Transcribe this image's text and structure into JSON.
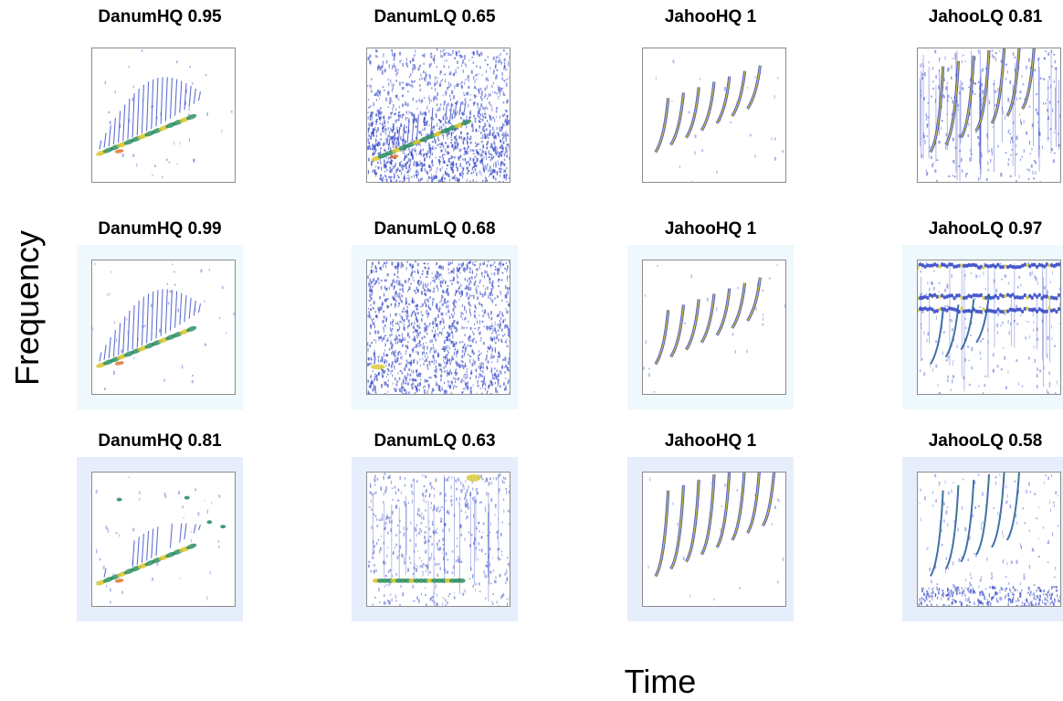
{
  "axes": {
    "y_label": "Frequency",
    "x_label": "Time"
  },
  "panels": [
    {
      "id": "r1c1",
      "title": "DanumHQ 0.95",
      "site": "DanumHQ",
      "score": 0.95,
      "noise": "low",
      "pattern": "danum"
    },
    {
      "id": "r1c2",
      "title": "DanumLQ 0.65",
      "site": "DanumLQ",
      "score": 0.65,
      "noise": "high",
      "pattern": "danum-noisy"
    },
    {
      "id": "r1c3",
      "title": "JahooHQ 1",
      "site": "JahooHQ",
      "score": 1,
      "noise": "low",
      "pattern": "jahoo"
    },
    {
      "id": "r1c4",
      "title": "JahooLQ 0.81",
      "site": "JahooLQ",
      "score": 0.81,
      "noise": "medium",
      "pattern": "jahoo-noisy"
    },
    {
      "id": "r2c1",
      "title": "DanumHQ 0.99",
      "site": "DanumHQ",
      "score": 0.99,
      "noise": "low",
      "pattern": "danum"
    },
    {
      "id": "r2c2",
      "title": "DanumLQ 0.68",
      "site": "DanumLQ",
      "score": 0.68,
      "noise": "very-high",
      "pattern": "noise"
    },
    {
      "id": "r2c3",
      "title": "JahooHQ 1",
      "site": "JahooHQ",
      "score": 1,
      "noise": "low",
      "pattern": "jahoo"
    },
    {
      "id": "r2c4",
      "title": "JahooLQ 0.97",
      "site": "JahooLQ",
      "score": 0.97,
      "noise": "bands",
      "pattern": "jahoo-bands"
    },
    {
      "id": "r3c1",
      "title": "DanumHQ 0.81",
      "site": "DanumHQ",
      "score": 0.81,
      "noise": "low",
      "pattern": "danum-sparse"
    },
    {
      "id": "r3c2",
      "title": "DanumLQ 0.63",
      "site": "DanumLQ",
      "score": 0.63,
      "noise": "high",
      "pattern": "danum-low"
    },
    {
      "id": "r3c3",
      "title": "JahooHQ 1",
      "site": "JahooHQ",
      "score": 1,
      "noise": "low",
      "pattern": "jahoo-tall"
    },
    {
      "id": "r3c4",
      "title": "JahooLQ 0.58",
      "site": "JahooLQ",
      "score": 0.58,
      "noise": "medium",
      "pattern": "jahoo-faint"
    }
  ],
  "colors": {
    "noise": "#2b3fc4",
    "mid": "#2e8f63",
    "hot": "#d7c62a",
    "peak": "#e06a1c"
  }
}
